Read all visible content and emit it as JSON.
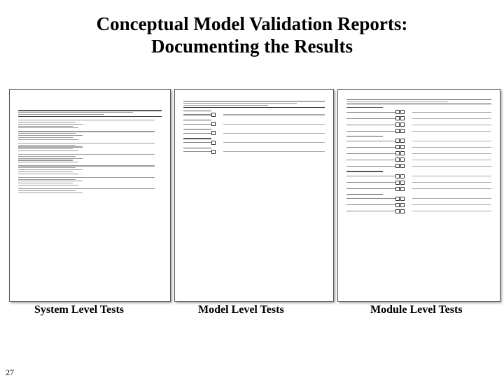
{
  "title": {
    "line1": "Conceptual Model Validation Reports:",
    "line2": "Documenting the Results"
  },
  "captions": {
    "system": "System Level Tests",
    "model": "Model Level Tests",
    "module": "Module Level Tests"
  },
  "page_number": "27"
}
